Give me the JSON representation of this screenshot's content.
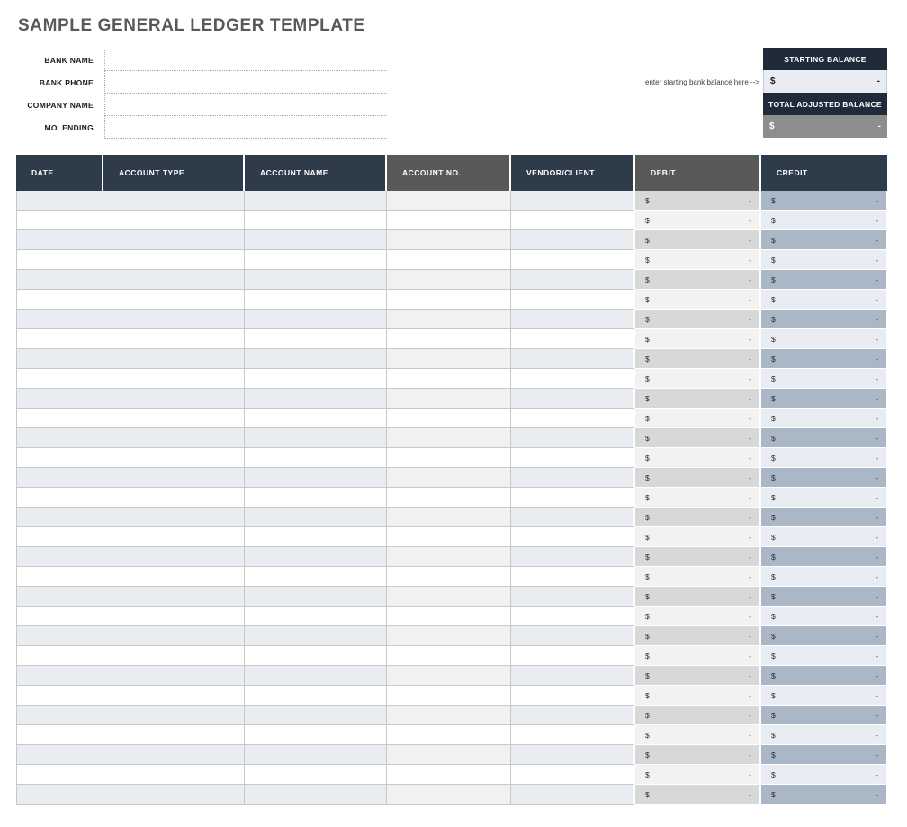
{
  "page": {
    "title": "SAMPLE GENERAL LEDGER TEMPLATE"
  },
  "form": {
    "fields": [
      {
        "key": "bank-name",
        "label": "BANK NAME",
        "value": ""
      },
      {
        "key": "bank-phone",
        "label": "BANK PHONE",
        "value": ""
      },
      {
        "key": "company-name",
        "label": "COMPANY NAME",
        "value": ""
      },
      {
        "key": "mo-ending",
        "label": "MO. ENDING",
        "value": ""
      }
    ]
  },
  "balance": {
    "note": "enter starting bank balance here -->",
    "starting": {
      "label": "STARTING BALANCE",
      "currency": "$",
      "value": "-"
    },
    "total": {
      "label": "TOTAL ADJUSTED BALANCE",
      "currency": "$",
      "value": "-"
    }
  },
  "ledger": {
    "columns": [
      {
        "key": "date",
        "label": "DATE",
        "variant": "navy",
        "money": false
      },
      {
        "key": "account-type",
        "label": "ACCOUNT TYPE",
        "variant": "navy",
        "money": false
      },
      {
        "key": "account-name",
        "label": "ACCOUNT NAME",
        "variant": "navy",
        "money": false
      },
      {
        "key": "account-no",
        "label": "ACCOUNT NO.",
        "variant": "gray",
        "money": false
      },
      {
        "key": "vendor-client",
        "label": "VENDOR/CLIENT",
        "variant": "navy",
        "money": false
      },
      {
        "key": "debit",
        "label": "DEBIT",
        "variant": "gray",
        "money": true
      },
      {
        "key": "credit",
        "label": "CREDIT",
        "variant": "navy",
        "money": true
      }
    ],
    "row_count": 31,
    "empty_cell_value": "",
    "money_cell": {
      "currency": "$",
      "amount": "-"
    }
  },
  "colors": {
    "header_navy": "#2e3b49",
    "header_gray": "#595959",
    "balance_header_navy": "#1f2b39",
    "row_shaded": "#e9ecf1",
    "row_shaded_account_no": "#f1f1ef",
    "debit_shaded": "#d8d8d8",
    "debit_light": "#f2f2f0",
    "credit_shaded": "#a9b7c6",
    "credit_light": "#e9edf3",
    "total_balance_gray": "#8d8d8d",
    "title_gray": "#58595b"
  }
}
